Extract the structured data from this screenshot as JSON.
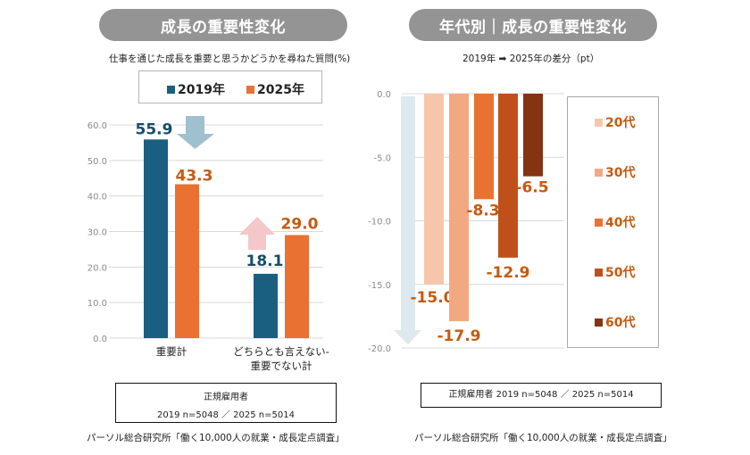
{
  "left_panel": {
    "title": "成長の重要性変化",
    "subtitle": "仕事を通じた成長を重要と思うかどうかを尋ねた質問(%)",
    "note_line1": "正規雇用者",
    "note_line2": "2019 n=5048 ／ 2025 n=5014",
    "source": "パーソル総合研究所「働く10,000人の就業・成長定点調査」"
  },
  "right_panel": {
    "title": "年代別｜成長の重要性変化",
    "subtitle": "2019年 ➡ 2025年の差分（pt）",
    "note": "正規雇用者  2019 n=5048 ／ 2025 n=5014",
    "source": "パーソル総合研究所「働く10,000人の就業・成長定点調査」"
  },
  "chart_data": [
    {
      "type": "bar",
      "title": "成長の重要性変化",
      "subtitle": "仕事を通じた成長を重要と思うかどうかを尋ねた質問(%)",
      "categories": [
        "重要計",
        "どちらとも言えない-重要でない計"
      ],
      "category_lines": [
        [
          "重要計"
        ],
        [
          "どちらとも言えない-",
          "重要でない計"
        ]
      ],
      "series": [
        {
          "name": "2019年",
          "color": "#1a5e80",
          "values": [
            55.9,
            18.1
          ]
        },
        {
          "name": "2025年",
          "color": "#e97132",
          "values": [
            43.3,
            29.0
          ]
        }
      ],
      "value_label_colors": {
        "2019年": "#174c6a",
        "2025年": "#c55a11"
      },
      "ylim": [
        0,
        60
      ],
      "yticks": [
        "0.0",
        "10.0",
        "20.0",
        "30.0",
        "40.0",
        "50.0",
        "60.0"
      ],
      "grid": true,
      "legend": "top",
      "annotations": [
        {
          "type": "arrow-down",
          "category": "重要計",
          "color": "#9fc1cf"
        },
        {
          "type": "arrow-up",
          "category": "どちらとも言えない-重要でない計",
          "color": "#f4c7c9"
        }
      ]
    },
    {
      "type": "bar",
      "title": "年代別｜成長の重要性変化",
      "subtitle": "2019年 ➡ 2025年の差分（pt）",
      "categories": [
        "20代",
        "30代",
        "40代",
        "50代",
        "60代"
      ],
      "series": [
        {
          "name": "差分",
          "values": [
            -15.0,
            -17.9,
            -8.3,
            -12.9,
            -6.5
          ],
          "colors": [
            "#f6c6aa",
            "#f2a982",
            "#e97132",
            "#c0501a",
            "#843412"
          ]
        }
      ],
      "value_labels": [
        "-15.0",
        "-17.9",
        "-8.3",
        "-12.9",
        "-6.5"
      ],
      "value_label_color": "#c55a11",
      "ylim": [
        -20,
        0
      ],
      "yticks": [
        "0.0",
        "-5.0",
        "-10.0",
        "-15.0",
        "-20.0"
      ],
      "grid": true,
      "legend": "right",
      "legend_entries": [
        "20代",
        "30代",
        "40代",
        "50代",
        "60代"
      ],
      "legend_text_color": "#c55a11",
      "annotations": [
        {
          "type": "arrow-down",
          "color": "#dde9ee"
        }
      ]
    }
  ]
}
